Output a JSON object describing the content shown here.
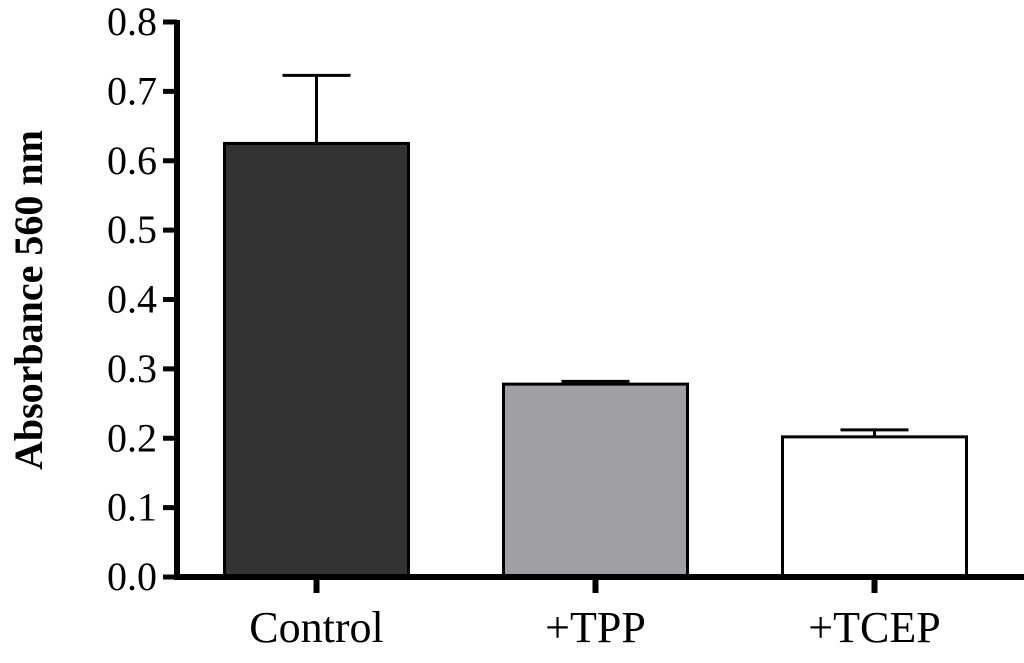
{
  "chart_data": {
    "type": "bar",
    "title": "",
    "xlabel": "",
    "ylabel": "Absorbance 560 nm",
    "ylim": [
      0,
      0.8
    ],
    "yticks": [
      "0.0",
      "0.1",
      "0.2",
      "0.3",
      "0.4",
      "0.5",
      "0.6",
      "0.7",
      "0.8"
    ],
    "categories": [
      "Control",
      "+TPP",
      "+TCEP"
    ],
    "values": [
      0.625,
      0.278,
      0.202
    ],
    "errors": [
      0.098,
      0.004,
      0.01
    ],
    "bar_colors": [
      "#333333",
      "#a0a0a4",
      "#ffffff"
    ],
    "grid": false,
    "legend": "none"
  }
}
